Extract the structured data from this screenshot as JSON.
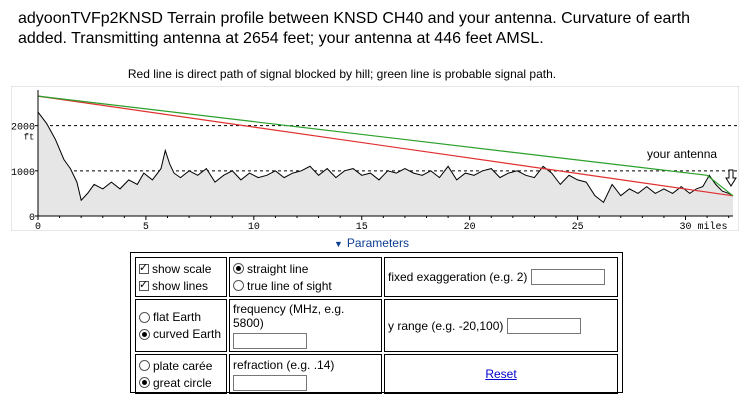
{
  "title": "adyoonTVFp2KNSD  Terrain profile between KNSD CH40 and your antenna. Curvature of earth added. Transmitting antenna at 2654 feet; your antenna at 446 feet AMSL.",
  "caption": "Red line is direct path of signal blocked by hill; green line is probable signal path.",
  "chart_data": {
    "type": "area",
    "x_unit": "miles",
    "y_unit": "ft",
    "xlim": [
      0,
      32.2
    ],
    "ylim": [
      0,
      2700
    ],
    "x_ticks": [
      0,
      5,
      10,
      15,
      20,
      25,
      30
    ],
    "x_tick_labels": [
      "0",
      "5",
      "10",
      "15",
      "20",
      "25",
      "30"
    ],
    "x_unit_label": "miles",
    "y_ticks": [
      0,
      1000,
      2000
    ],
    "y_tick_labels": [
      "0",
      "1000",
      "2000"
    ],
    "y_unit_label": "ft",
    "gridlines_y": [
      1000,
      2000
    ],
    "annotation": "your antenna",
    "terrain": {
      "x": [
        0,
        0.4,
        0.8,
        1.2,
        1.5,
        1.8,
        2.0,
        2.3,
        2.6,
        3.0,
        3.4,
        3.8,
        4.2,
        4.6,
        4.9,
        5.3,
        5.7,
        5.9,
        6.1,
        6.3,
        6.6,
        7.0,
        7.4,
        7.8,
        8.2,
        8.6,
        9.0,
        9.4,
        9.8,
        10.2,
        10.6,
        11.0,
        11.4,
        11.8,
        12.2,
        12.6,
        13.0,
        13.4,
        13.8,
        14.2,
        14.6,
        15.0,
        15.4,
        15.8,
        16.2,
        16.6,
        17.0,
        17.4,
        17.8,
        18.2,
        18.6,
        19.0,
        19.4,
        19.8,
        20.2,
        20.6,
        21.0,
        21.4,
        21.8,
        22.2,
        22.6,
        23.0,
        23.4,
        23.8,
        24.2,
        24.6,
        25.0,
        25.4,
        25.8,
        26.2,
        26.6,
        27.0,
        27.4,
        27.8,
        28.2,
        28.6,
        29.0,
        29.4,
        29.8,
        30.2,
        30.5,
        30.8,
        31.1,
        31.4,
        31.7,
        32.0,
        32.2
      ],
      "y": [
        2300,
        2050,
        1700,
        1250,
        1050,
        750,
        350,
        500,
        700,
        600,
        750,
        600,
        800,
        700,
        950,
        800,
        1050,
        1450,
        1150,
        950,
        850,
        1000,
        900,
        1050,
        750,
        900,
        1000,
        800,
        950,
        850,
        900,
        1000,
        850,
        950,
        1000,
        1100,
        900,
        1050,
        850,
        1000,
        1050,
        900,
        950,
        800,
        1000,
        950,
        1050,
        950,
        900,
        1000,
        850,
        1100,
        800,
        950,
        900,
        1000,
        1050,
        850,
        950,
        1000,
        900,
        850,
        1100,
        950,
        700,
        900,
        800,
        750,
        450,
        300,
        700,
        450,
        600,
        500,
        650,
        500,
        600,
        500,
        650,
        500,
        600,
        650,
        900,
        700,
        550,
        500,
        450
      ]
    },
    "series": [
      {
        "x": [
          0,
          32.2
        ],
        "y": [
          2654,
          446
        ]
      },
      {
        "x": [
          0,
          31.0,
          32.2
        ],
        "y": [
          2654,
          900,
          446
        ]
      }
    ],
    "colors": {
      "terrain_line": "#000000",
      "terrain_fill": "#e6e6e6",
      "direct_path": "#e03030",
      "probable_path": "#2aa02a",
      "grid": "#000000"
    }
  },
  "parameters": {
    "toggle_label": "Parameters",
    "show_scale": "show scale",
    "show_lines": "show lines",
    "straight_line": "straight line",
    "true_line_of_sight": "true line of sight",
    "fixed_exaggeration_label": "fixed exaggeration (e.g. 2)",
    "fixed_exaggeration_value": "",
    "flat_earth": "flat Earth",
    "curved_earth": "curved Earth",
    "frequency_label": "frequency (MHz, e.g. 5800)",
    "frequency_value": "",
    "y_range_label": "y range (e.g. -20,100)",
    "y_range_value": "",
    "plate_caree": "plate carée",
    "great_circle": "great circle",
    "refraction_label": "refraction (e.g. .14)",
    "refraction_value": "",
    "reset": "Reset"
  }
}
